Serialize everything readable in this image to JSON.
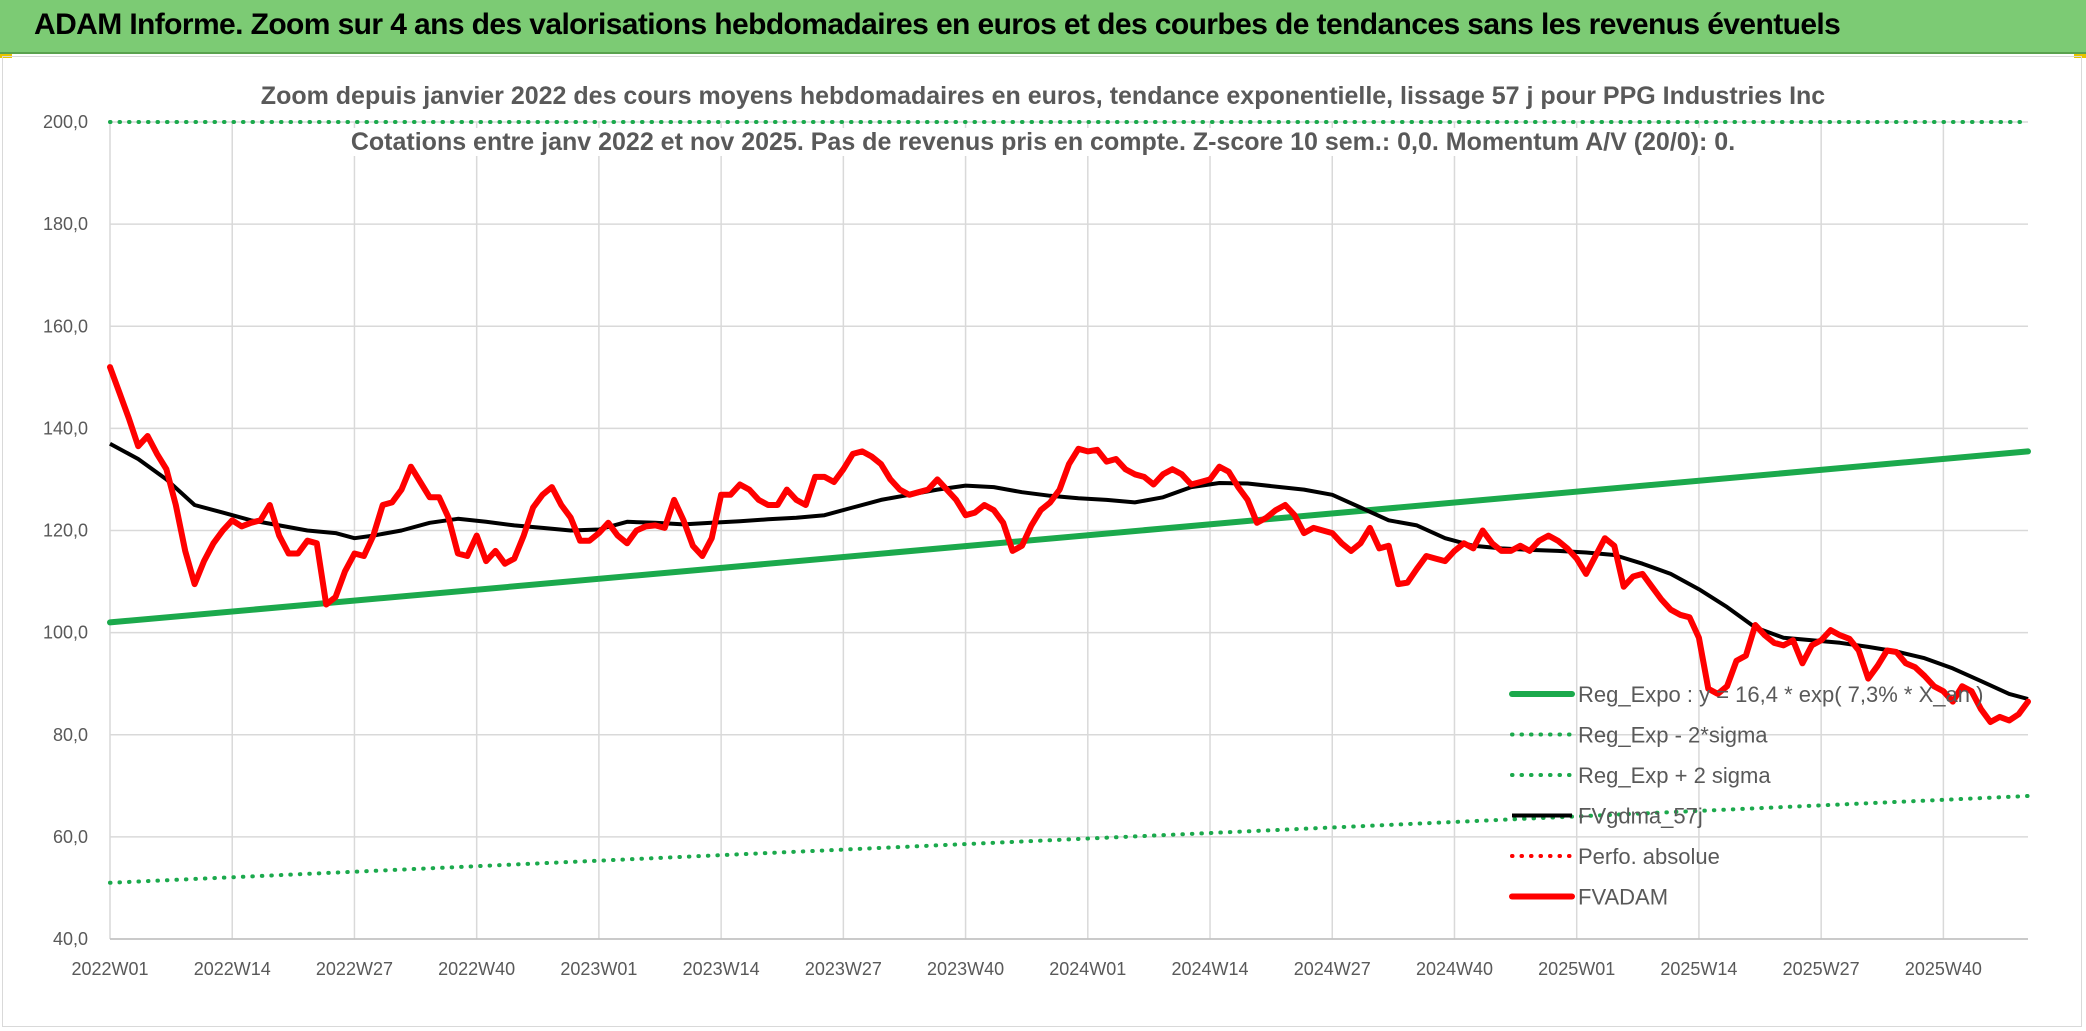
{
  "header": {
    "title": "ADAM Informe. Zoom sur 4 ans des valorisations hebdomadaires en euros et des courbes de tendances sans les revenus éventuels"
  },
  "colors": {
    "banner": "#7ccb74",
    "reg_expo": "#1ba94c",
    "fvadam": "#ff0000",
    "fvgdma": "#000000",
    "grid": "#d9d9d9",
    "text": "#595959"
  },
  "chart_data": {
    "type": "line",
    "title": "Zoom depuis janvier 2022 des cours moyens hebdomadaires en euros, tendance exponentielle, lissage 57 j pour PPG Industries Inc",
    "subtitle": "Cotations entre janv 2022 et nov 2025. Pas de revenus pris en compte. Z-score 10 sem.: 0,0. Momentum A/V (20/0): 0.",
    "xlabel": "",
    "ylabel": "",
    "x_tick_labels": [
      "2022W01",
      "2022W14",
      "2022W27",
      "2022W40",
      "2023W01",
      "2023W14",
      "2023W27",
      "2023W40",
      "2024W01",
      "2024W14",
      "2024W27",
      "2024W40",
      "2025W01",
      "2025W14",
      "2025W27",
      "2025W40"
    ],
    "y_tick_labels": [
      "40,0",
      "60,0",
      "80,0",
      "100,0",
      "120,0",
      "140,0",
      "160,0",
      "180,0",
      "200,0"
    ],
    "ylim": [
      40,
      200
    ],
    "x_range_weeks": [
      0,
      204
    ],
    "grid": true,
    "legend_position": "bottom-right",
    "series": [
      {
        "name": "Reg_Expo : y = 16,4 * exp( 7,3% * X_an )",
        "style": "solid-thick",
        "points": [
          [
            0,
            102
          ],
          [
            204,
            135.5
          ]
        ]
      },
      {
        "name": "Reg_Exp - 2*sigma",
        "style": "dotted",
        "points": [
          [
            0,
            51
          ],
          [
            204,
            68
          ]
        ]
      },
      {
        "name": "Reg_Exp + 2 sigma",
        "style": "dotted",
        "points": [
          [
            0,
            200
          ],
          [
            204,
            200
          ]
        ]
      },
      {
        "name": "FVgdma_57j",
        "style": "solid",
        "points": [
          [
            0,
            137
          ],
          [
            3,
            134
          ],
          [
            6,
            130
          ],
          [
            9,
            125
          ],
          [
            12,
            123.5
          ],
          [
            15,
            122
          ],
          [
            18,
            121
          ],
          [
            21,
            120
          ],
          [
            24,
            119.5
          ],
          [
            26,
            118.5
          ],
          [
            28,
            119
          ],
          [
            31,
            120
          ],
          [
            34,
            121.5
          ],
          [
            37,
            122.3
          ],
          [
            40,
            121.7
          ],
          [
            43,
            121
          ],
          [
            46,
            120.5
          ],
          [
            49,
            120
          ],
          [
            52,
            120.2
          ],
          [
            55,
            121.7
          ],
          [
            58,
            121.5
          ],
          [
            61,
            121.2
          ],
          [
            64,
            121.5
          ],
          [
            67,
            121.8
          ],
          [
            70,
            122.2
          ],
          [
            73,
            122.5
          ],
          [
            76,
            123
          ],
          [
            79,
            124.5
          ],
          [
            82,
            126
          ],
          [
            85,
            127
          ],
          [
            88,
            128
          ],
          [
            91,
            128.8
          ],
          [
            94,
            128.5
          ],
          [
            97,
            127.5
          ],
          [
            100,
            126.8
          ],
          [
            103,
            126.3
          ],
          [
            106,
            126
          ],
          [
            109,
            125.5
          ],
          [
            112,
            126.5
          ],
          [
            115,
            128.5
          ],
          [
            118,
            129.3
          ],
          [
            121,
            129.2
          ],
          [
            124,
            128.6
          ],
          [
            127,
            128
          ],
          [
            130,
            127
          ],
          [
            133,
            124.5
          ],
          [
            136,
            122
          ],
          [
            139,
            121
          ],
          [
            142,
            118.5
          ],
          [
            145,
            117
          ],
          [
            148,
            116.5
          ],
          [
            151,
            116.2
          ],
          [
            154,
            116
          ],
          [
            157,
            115.7
          ],
          [
            160,
            115.2
          ],
          [
            163,
            113.5
          ],
          [
            166,
            111.5
          ],
          [
            169,
            108.5
          ],
          [
            172,
            105
          ],
          [
            175,
            101
          ],
          [
            178,
            99
          ],
          [
            181,
            98.5
          ],
          [
            184,
            98
          ],
          [
            187,
            97.2
          ],
          [
            190,
            96.3
          ],
          [
            193,
            95
          ],
          [
            196,
            93
          ],
          [
            199,
            90.5
          ],
          [
            202,
            88
          ],
          [
            204,
            87
          ]
        ]
      },
      {
        "name": "Perfo. absolue",
        "style": "dotted",
        "points": []
      },
      {
        "name": "FVADAM",
        "style": "solid-thick",
        "points": [
          [
            0,
            152
          ],
          [
            1,
            147
          ],
          [
            2,
            142
          ],
          [
            3,
            136.5
          ],
          [
            4,
            138.5
          ],
          [
            5,
            135
          ],
          [
            6,
            132
          ],
          [
            7,
            125
          ],
          [
            8,
            116
          ],
          [
            9,
            109.5
          ],
          [
            10,
            114
          ],
          [
            11,
            117.5
          ],
          [
            12,
            120
          ],
          [
            13,
            122
          ],
          [
            14,
            120.8
          ],
          [
            15,
            121.5
          ],
          [
            16,
            122
          ],
          [
            17,
            125
          ],
          [
            18,
            119
          ],
          [
            19,
            115.5
          ],
          [
            20,
            115.5
          ],
          [
            21,
            118
          ],
          [
            22,
            117.5
          ],
          [
            23,
            105.5
          ],
          [
            24,
            107
          ],
          [
            25,
            112
          ],
          [
            26,
            115.5
          ],
          [
            27,
            115
          ],
          [
            28,
            119
          ],
          [
            29,
            125
          ],
          [
            30,
            125.5
          ],
          [
            31,
            128
          ],
          [
            32,
            132.5
          ],
          [
            33,
            129.5
          ],
          [
            34,
            126.5
          ],
          [
            35,
            126.5
          ],
          [
            36,
            122.5
          ],
          [
            37,
            115.5
          ],
          [
            38,
            115
          ],
          [
            39,
            119
          ],
          [
            40,
            114
          ],
          [
            41,
            116
          ],
          [
            42,
            113.5
          ],
          [
            43,
            114.5
          ],
          [
            44,
            119
          ],
          [
            45,
            124.5
          ],
          [
            46,
            127
          ],
          [
            47,
            128.5
          ],
          [
            48,
            125
          ],
          [
            49,
            122.5
          ],
          [
            50,
            118
          ],
          [
            51,
            118
          ],
          [
            52,
            119.5
          ],
          [
            53,
            121.5
          ],
          [
            54,
            119
          ],
          [
            55,
            117.5
          ],
          [
            56,
            120
          ],
          [
            57,
            120.8
          ],
          [
            58,
            121
          ],
          [
            59,
            120.5
          ],
          [
            60,
            126
          ],
          [
            61,
            122
          ],
          [
            62,
            117
          ],
          [
            63,
            115
          ],
          [
            64,
            118.5
          ],
          [
            65,
            127
          ],
          [
            66,
            127
          ],
          [
            67,
            129
          ],
          [
            68,
            128
          ],
          [
            69,
            126
          ],
          [
            70,
            125
          ],
          [
            71,
            125
          ],
          [
            72,
            128
          ],
          [
            73,
            126
          ],
          [
            74,
            125
          ],
          [
            75,
            130.5
          ],
          [
            76,
            130.5
          ],
          [
            77,
            129.5
          ],
          [
            78,
            132
          ],
          [
            79,
            135
          ],
          [
            80,
            135.5
          ],
          [
            81,
            134.5
          ],
          [
            82,
            133
          ],
          [
            83,
            130
          ],
          [
            84,
            128
          ],
          [
            85,
            127
          ],
          [
            86,
            127.5
          ],
          [
            87,
            128
          ],
          [
            88,
            130
          ],
          [
            89,
            128
          ],
          [
            90,
            126
          ],
          [
            91,
            123
          ],
          [
            92,
            123.5
          ],
          [
            93,
            125
          ],
          [
            94,
            124
          ],
          [
            95,
            121.5
          ],
          [
            96,
            116
          ],
          [
            97,
            117
          ],
          [
            98,
            121
          ],
          [
            99,
            124
          ],
          [
            100,
            125.5
          ],
          [
            101,
            128
          ],
          [
            102,
            133
          ],
          [
            103,
            136
          ],
          [
            104,
            135.5
          ],
          [
            105,
            135.8
          ],
          [
            106,
            133.5
          ],
          [
            107,
            134
          ],
          [
            108,
            132
          ],
          [
            109,
            131
          ],
          [
            110,
            130.5
          ],
          [
            111,
            129
          ],
          [
            112,
            131
          ],
          [
            113,
            132
          ],
          [
            114,
            131
          ],
          [
            115,
            129
          ],
          [
            116,
            129.5
          ],
          [
            117,
            130
          ],
          [
            118,
            132.5
          ],
          [
            119,
            131.5
          ],
          [
            120,
            128.5
          ],
          [
            121,
            126
          ],
          [
            122,
            121.5
          ],
          [
            123,
            122.5
          ],
          [
            124,
            124
          ],
          [
            125,
            125
          ],
          [
            126,
            123
          ],
          [
            127,
            119.5
          ],
          [
            128,
            120.5
          ],
          [
            129,
            120
          ],
          [
            130,
            119.5
          ],
          [
            131,
            117.5
          ],
          [
            132,
            116
          ],
          [
            133,
            117.5
          ],
          [
            134,
            120.5
          ],
          [
            135,
            116.5
          ],
          [
            136,
            117
          ],
          [
            137,
            109.5
          ],
          [
            138,
            109.8
          ],
          [
            139,
            112.5
          ],
          [
            140,
            115
          ],
          [
            141,
            114.5
          ],
          [
            142,
            114
          ],
          [
            143,
            116
          ],
          [
            144,
            117.5
          ],
          [
            145,
            116.5
          ],
          [
            146,
            120
          ],
          [
            147,
            117.5
          ],
          [
            148,
            116
          ],
          [
            149,
            116
          ],
          [
            150,
            117
          ],
          [
            151,
            116
          ],
          [
            152,
            118
          ],
          [
            153,
            119
          ],
          [
            154,
            118
          ],
          [
            155,
            116.5
          ],
          [
            156,
            114.5
          ],
          [
            157,
            111.5
          ],
          [
            158,
            115
          ],
          [
            159,
            118.5
          ],
          [
            160,
            117
          ],
          [
            161,
            109
          ],
          [
            162,
            111
          ],
          [
            163,
            111.5
          ],
          [
            164,
            109
          ],
          [
            165,
            106.5
          ],
          [
            166,
            104.5
          ],
          [
            167,
            103.5
          ],
          [
            168,
            103
          ],
          [
            169,
            99
          ],
          [
            170,
            89
          ],
          [
            171,
            88
          ],
          [
            172,
            89.5
          ],
          [
            173,
            94.5
          ],
          [
            174,
            95.5
          ],
          [
            175,
            101.5
          ],
          [
            176,
            99.5
          ],
          [
            177,
            98
          ],
          [
            178,
            97.5
          ],
          [
            179,
            98.5
          ],
          [
            180,
            94
          ],
          [
            181,
            97.5
          ],
          [
            182,
            98.5
          ],
          [
            183,
            100.5
          ],
          [
            184,
            99.5
          ],
          [
            185,
            98.8
          ],
          [
            186,
            96.5
          ],
          [
            187,
            91
          ],
          [
            188,
            93.5
          ],
          [
            189,
            96.5
          ],
          [
            190,
            96.2
          ],
          [
            191,
            94
          ],
          [
            192,
            93.2
          ],
          [
            193,
            91.5
          ],
          [
            194,
            89.5
          ],
          [
            195,
            88.5
          ],
          [
            196,
            86.5
          ],
          [
            197,
            89.5
          ],
          [
            198,
            88.5
          ],
          [
            199,
            85
          ],
          [
            200,
            82.5
          ],
          [
            201,
            83.5
          ],
          [
            202,
            82.8
          ],
          [
            203,
            84
          ],
          [
            204,
            86.5
          ]
        ]
      }
    ],
    "legend": [
      {
        "label": "Reg_Expo : y = 16,4 * exp( 7,3% *  X_an )",
        "style": "solid-thick",
        "color": "#1ba94c"
      },
      {
        "label": "Reg_Exp - 2*sigma",
        "style": "dotted",
        "color": "#1ba94c"
      },
      {
        "label": "Reg_Exp + 2 sigma",
        "style": "dotted",
        "color": "#1ba94c"
      },
      {
        "label": "FVgdma_57j",
        "style": "solid",
        "color": "#000000"
      },
      {
        "label": "Perfo. absolue",
        "style": "dotted",
        "color": "#ff0000"
      },
      {
        "label": "FVADAM",
        "style": "solid-thick",
        "color": "#ff0000"
      }
    ]
  }
}
